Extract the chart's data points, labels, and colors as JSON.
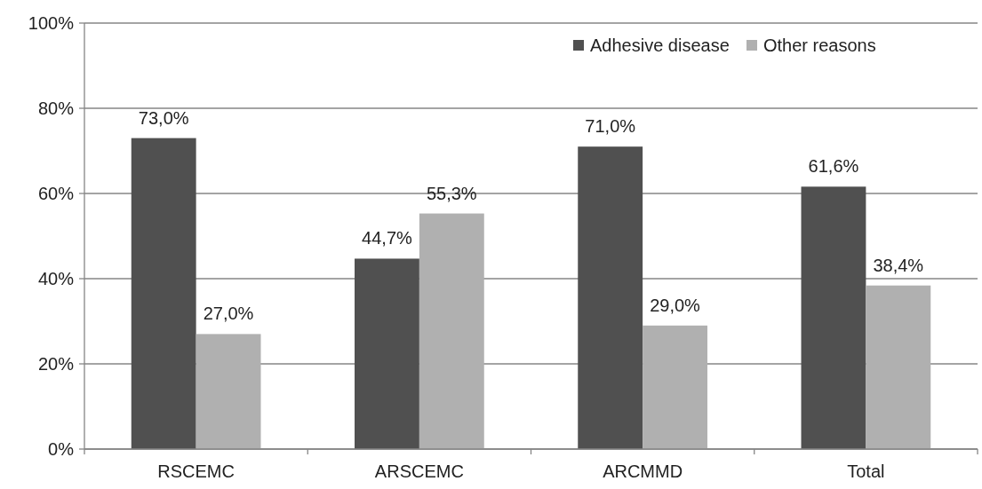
{
  "chart_data": {
    "type": "bar",
    "categories": [
      "RSCEMC",
      "ARSCEMC",
      "ARCMMD",
      "Total"
    ],
    "series": [
      {
        "name": "Adhesive disease",
        "color": "#505050",
        "values": [
          73.0,
          44.7,
          71.0,
          61.6
        ],
        "value_labels": [
          "73,0%",
          "44,7%",
          "71,0%",
          "61,6%"
        ]
      },
      {
        "name": "Other reasons",
        "color": "#b0b0b0",
        "values": [
          27.0,
          55.3,
          29.0,
          38.4
        ],
        "value_labels": [
          "27,0%",
          "55,3%",
          "29,0%",
          "38,4%"
        ]
      }
    ],
    "ylim": [
      0,
      100
    ],
    "yticks": [
      {
        "value": 0,
        "label": "0%"
      },
      {
        "value": 20,
        "label": "20%"
      },
      {
        "value": 40,
        "label": "40%"
      },
      {
        "value": 60,
        "label": "60%"
      },
      {
        "value": 80,
        "label": "80%"
      },
      {
        "value": 100,
        "label": "100%"
      }
    ],
    "grid": "y",
    "legend": "top right"
  }
}
